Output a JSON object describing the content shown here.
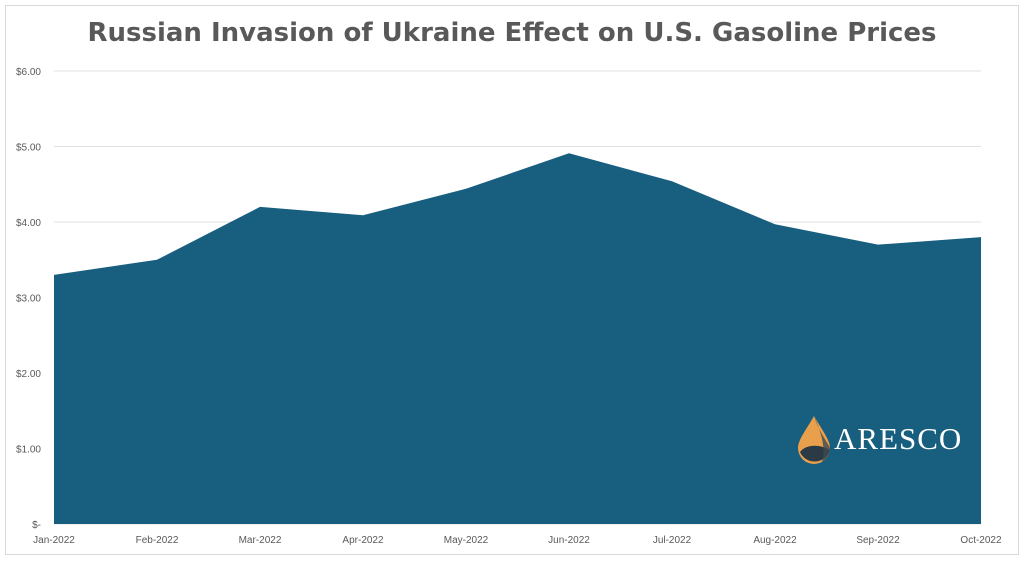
{
  "chart_data": {
    "type": "area",
    "title": "Russian Invasion of Ukraine Effect on U.S. Gasoline Prices",
    "categories": [
      "Jan-2022",
      "Feb-2022",
      "Mar-2022",
      "Apr-2022",
      "May-2022",
      "Jun-2022",
      "Jul-2022",
      "Aug-2022",
      "Sep-2022",
      "Oct-2022"
    ],
    "series": [
      {
        "values": [
          3.3,
          3.5,
          4.2,
          4.09,
          4.44,
          4.91,
          4.54,
          3.97,
          3.7,
          3.8
        ]
      }
    ],
    "yticks": [
      0,
      1,
      2,
      3,
      4,
      5,
      6
    ],
    "ytick_labels": [
      "$-",
      "$1.00",
      "$2.00",
      "$3.00",
      "$4.00",
      "$5.00",
      "$6.00"
    ],
    "ylim": [
      0,
      6
    ],
    "grid": true,
    "colors": {
      "fill": "#175e7f",
      "grid": "#e0e0e0",
      "text": "#595959"
    }
  },
  "logo": {
    "text": "ARESCO"
  }
}
